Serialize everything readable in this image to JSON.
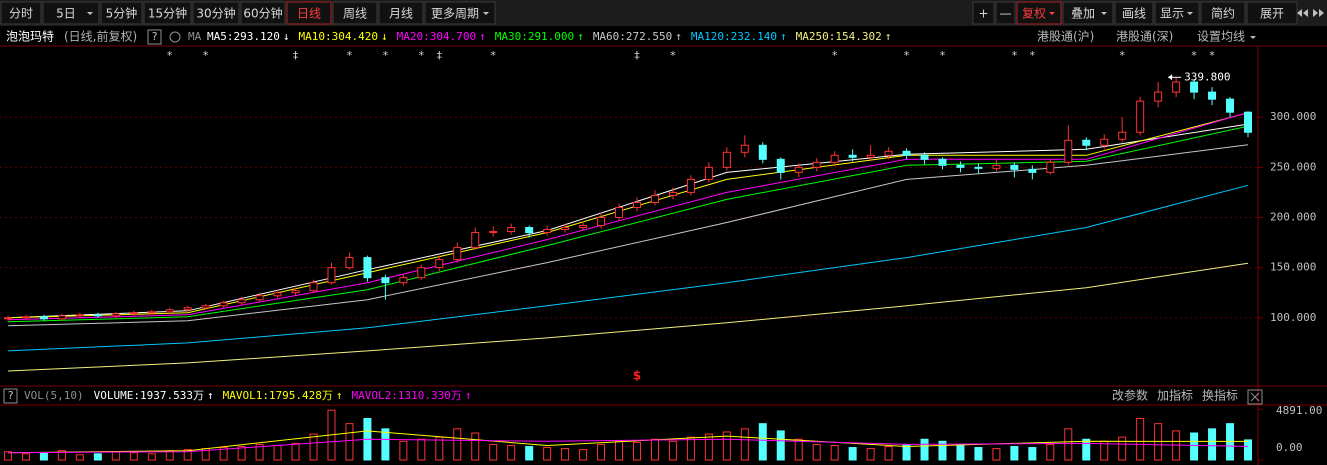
{
  "toolbar": {
    "periods": [
      "分时",
      "5日",
      "5分钟",
      "15分钟",
      "30分钟",
      "60分钟",
      "日线",
      "周线",
      "月线",
      "更多周期"
    ],
    "active_index": 6,
    "tools": [
      "+",
      "—",
      "复权",
      "叠加",
      "画线",
      "显示",
      "简约",
      "展开"
    ],
    "active_tool_index": 2
  },
  "chart_data": [
    {
      "type": "candlestick",
      "title": "泡泡玛特",
      "subtitle": "(日线,前复权)",
      "help": "?",
      "indicator": "MA",
      "links": [
        "港股通(沪)",
        "港股通(深)",
        "设置均线"
      ],
      "open": [
        99,
        100,
        101,
        99,
        102,
        103,
        102,
        104,
        105,
        106,
        108,
        110,
        112,
        115,
        118,
        122,
        125,
        127,
        135,
        150,
        160,
        140,
        135,
        140,
        150,
        158,
        170,
        185,
        186,
        190,
        185,
        188,
        190,
        192,
        200,
        210,
        215,
        222,
        225,
        238,
        250,
        265,
        272,
        258,
        245,
        250,
        255,
        262,
        260,
        262,
        266,
        262,
        258,
        252,
        250,
        249,
        252,
        248,
        245,
        255,
        277,
        272,
        278,
        285,
        316,
        325,
        335,
        325,
        318,
        305
      ],
      "high": [
        102,
        103,
        103,
        104,
        105,
        105,
        106,
        107,
        108,
        110,
        112,
        114,
        117,
        121,
        125,
        128,
        130,
        138,
        155,
        165,
        162,
        143,
        144,
        153,
        162,
        175,
        190,
        191,
        194,
        192,
        192,
        194,
        196,
        205,
        214,
        220,
        227,
        230,
        242,
        255,
        270,
        282,
        275,
        260,
        254,
        259,
        266,
        268,
        272,
        270,
        269,
        265,
        260,
        256,
        254,
        257,
        255,
        252,
        258,
        292,
        280,
        283,
        300,
        320,
        335,
        339.8,
        338,
        330,
        320,
        306
      ],
      "low": [
        97,
        98,
        97,
        97,
        100,
        100,
        100,
        102,
        103,
        104,
        106,
        108,
        110,
        113,
        116,
        120,
        122,
        125,
        133,
        148,
        136,
        118,
        132,
        138,
        147,
        155,
        168,
        181,
        183,
        180,
        182,
        185,
        187,
        189,
        197,
        206,
        212,
        218,
        222,
        235,
        247,
        260,
        254,
        238,
        240,
        246,
        251,
        256,
        256,
        258,
        258,
        253,
        248,
        245,
        244,
        246,
        240,
        238,
        243,
        252,
        267,
        268,
        275,
        282,
        310,
        320,
        318,
        312,
        300,
        280
      ],
      "close": [
        100,
        101,
        99,
        102,
        103,
        102,
        104,
        105,
        106,
        108,
        110,
        112,
        115,
        118,
        122,
        125,
        127,
        135,
        150,
        160,
        140,
        135,
        140,
        150,
        158,
        170,
        185,
        186,
        190,
        185,
        188,
        190,
        192,
        200,
        210,
        215,
        222,
        225,
        238,
        250,
        265,
        272,
        258,
        245,
        250,
        255,
        262,
        260,
        262,
        266,
        262,
        258,
        252,
        250,
        249,
        252,
        248,
        245,
        255,
        277,
        272,
        278,
        285,
        316,
        325,
        335,
        325,
        318,
        305,
        285
      ],
      "up_color": "#ff3232",
      "down_color": "#54ffff",
      "ylim": [
        33,
        369
      ],
      "yticks": [
        {
          "value": 100,
          "label": "100.000"
        },
        {
          "value": 150,
          "label": "150.000"
        },
        {
          "value": 200,
          "label": "200.000"
        },
        {
          "value": 250,
          "label": "250.000"
        },
        {
          "value": 300,
          "label": "300.000"
        }
      ],
      "grid": true,
      "ma_x": [
        0,
        10,
        20,
        30,
        40,
        50,
        60,
        69
      ],
      "series": [
        {
          "legend": "MA5:293.120",
          "trend": "↓",
          "color": "#ffffff",
          "values": [
            100,
            107,
            148,
            187,
            245,
            263,
            268,
            293.12
          ]
        },
        {
          "legend": "MA10:304.420",
          "trend": "↓",
          "color": "#ffff00",
          "values": [
            100,
            105,
            145,
            185,
            238,
            262,
            262,
            304.42
          ]
        },
        {
          "legend": "MA20:304.700",
          "trend": "↑",
          "color": "#ff00ff",
          "values": [
            98,
            103,
            135,
            178,
            225,
            258,
            258,
            304.7
          ]
        },
        {
          "legend": "MA30:291.000",
          "trend": "↑",
          "color": "#00ff00",
          "values": [
            96,
            101,
            128,
            172,
            218,
            252,
            256,
            291
          ]
        },
        {
          "legend": "MA60:272.550",
          "trend": "↑",
          "color": "#c8c8c8",
          "values": [
            92,
            97,
            118,
            155,
            195,
            238,
            252,
            272.55
          ]
        },
        {
          "legend": "MA120:232.140",
          "trend": "↑",
          "color": "#00c8ff",
          "values": [
            67,
            75,
            90,
            112,
            135,
            160,
            190,
            232.14
          ]
        },
        {
          "legend": "MA250:154.302",
          "trend": "↑",
          "color": "#f0f080",
          "values": [
            47,
            55,
            67,
            80,
            95,
            112,
            130,
            154.302
          ]
        }
      ],
      "event_marks": [
        {
          "index": 9,
          "label": "*"
        },
        {
          "index": 11,
          "label": "*"
        },
        {
          "index": 16,
          "label": "‡"
        },
        {
          "index": 19,
          "label": "*"
        },
        {
          "index": 21,
          "label": "*"
        },
        {
          "index": 23,
          "label": "*"
        },
        {
          "index": 24,
          "label": "‡"
        },
        {
          "index": 27,
          "label": "*"
        },
        {
          "index": 35,
          "label": "‡"
        },
        {
          "index": 37,
          "label": "*"
        },
        {
          "index": 46,
          "label": "*"
        },
        {
          "index": 50,
          "label": "*"
        },
        {
          "index": 52,
          "label": "*"
        },
        {
          "index": 56,
          "label": "*"
        },
        {
          "index": 57,
          "label": "*"
        },
        {
          "index": 62,
          "label": "*"
        },
        {
          "index": 66,
          "label": "*"
        },
        {
          "index": 67,
          "label": "*"
        }
      ],
      "special_mark": {
        "index": 35,
        "label": "$"
      },
      "annotations": [
        {
          "index": 65,
          "value": 339.8,
          "label": "339.800"
        }
      ]
    },
    {
      "type": "bar",
      "title": "VOL(5,10)",
      "help": "?",
      "legend": "VOLUME:1937.533万",
      "trend": "↑",
      "values": [
        800,
        600,
        700,
        900,
        500,
        600,
        800,
        700,
        600,
        900,
        1000,
        1100,
        1200,
        1300,
        1500,
        1400,
        1600,
        2500,
        4800,
        3500,
        4000,
        3000,
        1800,
        2000,
        2200,
        3000,
        2600,
        1500,
        1400,
        1300,
        1200,
        1100,
        1000,
        1500,
        1800,
        1700,
        2000,
        1800,
        2200,
        2500,
        2700,
        3000,
        3500,
        2800,
        2000,
        1500,
        1400,
        1200,
        1100,
        1300,
        1500,
        2000,
        1800,
        1400,
        1200,
        1100,
        1300,
        1200,
        1500,
        3000,
        2000,
        1800,
        2200,
        4000,
        3500,
        2800,
        2600,
        3000,
        3500,
        1937.533
      ],
      "ylim": [
        0,
        5200
      ],
      "yticks": [
        {
          "value": 4891,
          "label": "4891.00"
        },
        {
          "value": 0,
          "label": "0.00"
        }
      ],
      "ma_x": [
        0,
        10,
        20,
        30,
        40,
        50,
        60,
        69
      ],
      "series": [
        {
          "legend": "MAVOL1:1795.428万",
          "trend": "↑",
          "color": "#ffff00",
          "values": [
            700,
            900,
            2800,
            1400,
            2300,
            1300,
            1800,
            1795.428
          ]
        },
        {
          "legend": "MAVOL2:1310.330万",
          "trend": "↑",
          "color": "#ff00ff",
          "values": [
            700,
            800,
            2000,
            1800,
            2000,
            1500,
            1600,
            1310.33
          ]
        }
      ],
      "links": [
        "改参数",
        "加指标",
        "换指标"
      ]
    }
  ]
}
